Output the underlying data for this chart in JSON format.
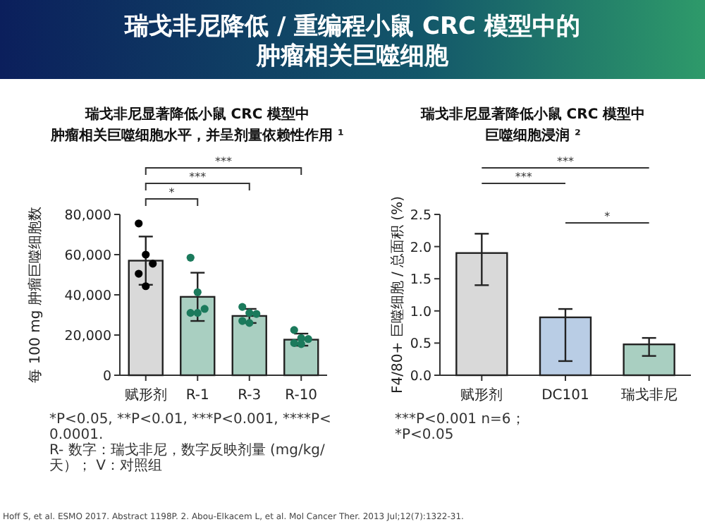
{
  "chart_data": [
    {
      "type": "other",
      "title": "瑞戈非尼降低 / 重编程小鼠 CRC 模型中的肿瘤相关巨噬细胞",
      "annotations": [
        "Hoff S, et al. ESMO 2017. Abstract 1198P. 2. Abou-Elkacem L, et al. Mol Cancer Ther. 2013 Jul;12(7):1322-31."
      ]
    },
    {
      "type": "bar",
      "title": "瑞戈非尼显著降低小鼠 CRC 模型中肿瘤相关巨噬细胞水平，并呈剂量依赖性作用 ¹",
      "ylabel": "每 100 mg 肿瘤巨噬细胞数",
      "categories": [
        "赋形剂",
        "R-1",
        "R-3",
        "R-10"
      ],
      "series": [
        {
          "type": "bar",
          "colors": [
            "#d9d9d9",
            "#a9cfc1",
            "#a9cfc1",
            "#a9cfc1"
          ],
          "values": [
            57000,
            39000,
            29500,
            17700
          ],
          "errors": [
            12000,
            12000,
            3500,
            3000
          ]
        },
        {
          "type": "scatter",
          "marker": "circle",
          "x": [
            "赋形剂",
            "赋形剂",
            "赋形剂",
            "赋形剂",
            "赋形剂",
            "R-1",
            "R-1",
            "R-1",
            "R-1",
            "R-1",
            "R-3",
            "R-3",
            "R-3",
            "R-3",
            "R-3",
            "R-10",
            "R-10",
            "R-10",
            "R-10",
            "R-10"
          ],
          "values": [
            75500,
            60000,
            55500,
            50500,
            44300,
            58500,
            41300,
            33000,
            31000,
            31000,
            34000,
            31000,
            30500,
            27000,
            26000,
            22500,
            18500,
            18000,
            16000,
            15500
          ],
          "colors": [
            "#000000",
            "#000000",
            "#000000",
            "#000000",
            "#000000",
            "#1b7a5c",
            "#1b7a5c",
            "#1b7a5c",
            "#1b7a5c",
            "#1b7a5c",
            "#1b7a5c",
            "#1b7a5c",
            "#1b7a5c",
            "#1b7a5c",
            "#1b7a5c",
            "#1b7a5c",
            "#1b7a5c",
            "#1b7a5c",
            "#1b7a5c",
            "#1b7a5c"
          ]
        }
      ],
      "ylim": [
        0,
        80000
      ],
      "yticks": [
        {
          "value": 0,
          "label": "0"
        },
        {
          "value": 20000,
          "label": "20,000"
        },
        {
          "value": 40000,
          "label": "40,000"
        },
        {
          "value": 60000,
          "label": "60,000"
        },
        {
          "value": 80000,
          "label": "80,000"
        }
      ],
      "annotations": [
        "*",
        "***",
        "***",
        "*P<0.05, **P<0.01, ***P<0.001, ****P<0.0001.",
        "R- 数字：瑞戈非尼，数字反映剂量 (mg/kg/ 天）； V：对照组"
      ]
    },
    {
      "type": "bar",
      "title": "瑞戈非尼显著降低小鼠 CRC 模型中巨噬细胞浸润 ²",
      "ylabel": "F4/80+ 巨噬细胞 / 总面积 (%)",
      "categories": [
        "赋形剂",
        "DC101",
        "瑞戈非尼"
      ],
      "series": [
        {
          "type": "bar",
          "colors": [
            "#d9d9d9",
            "#b9cde5",
            "#a9cfc1"
          ],
          "values": [
            1.9,
            0.9,
            0.48
          ],
          "errors": [
            [
              1.4,
              2.2
            ],
            [
              0.22,
              1.03
            ],
            [
              0.3,
              0.58
            ]
          ]
        }
      ],
      "ylim": [
        0,
        2.5
      ],
      "yticks": [
        {
          "value": 0,
          "label": "0.0"
        },
        {
          "value": 0.5,
          "label": "0.5"
        },
        {
          "value": 1,
          "label": "1.0"
        },
        {
          "value": 1.5,
          "label": "1.5"
        },
        {
          "value": 2,
          "label": "2.0"
        },
        {
          "value": 2.5,
          "label": "2.5"
        }
      ],
      "annotations": [
        "***",
        "***",
        "*",
        "***P<0.001 n=6；",
        "*P<0.05"
      ]
    }
  ]
}
